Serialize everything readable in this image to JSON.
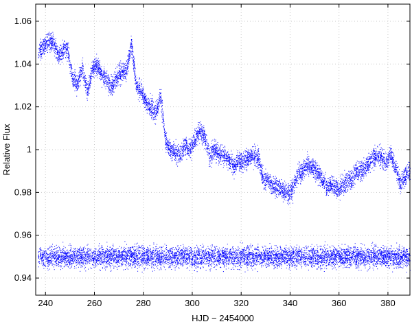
{
  "chart_data": {
    "type": "scatter",
    "title": "",
    "xlabel": "HJD − 2454000",
    "ylabel": "Relative Flux",
    "xlim": [
      236,
      389
    ],
    "ylim": [
      0.932,
      1.068
    ],
    "xticks": [
      240,
      260,
      280,
      300,
      320,
      340,
      360,
      380
    ],
    "xtick_labels": [
      "240",
      "260",
      "280",
      "300",
      "320",
      "340",
      "360",
      "380"
    ],
    "yticks": [
      0.94,
      0.96,
      0.98,
      1.0,
      1.02,
      1.04,
      1.06
    ],
    "ytick_labels": [
      "0.94",
      "0.96",
      "0.98",
      "1",
      "1.02",
      "1.04",
      "1.06"
    ],
    "grid": true,
    "legend": "none",
    "marker_color": "#0000ff",
    "series": [
      {
        "x": [
          237,
          239,
          241,
          243,
          245,
          247,
          249,
          251,
          253,
          255,
          257,
          259,
          261,
          263,
          265,
          267,
          269,
          271,
          273,
          275,
          277,
          279,
          281,
          283,
          285,
          287,
          289,
          291,
          293,
          295,
          297,
          299,
          301,
          303,
          305,
          307,
          309,
          311,
          313,
          315,
          317,
          319,
          321,
          323,
          325,
          327,
          329,
          331,
          333,
          335,
          337,
          339,
          341,
          343,
          345,
          347,
          349,
          351,
          353,
          355,
          357,
          359,
          361,
          363,
          365,
          367,
          369,
          371,
          373,
          375,
          377,
          379,
          381,
          383,
          385,
          387,
          389
        ],
        "y": [
          1.046,
          1.048,
          1.051,
          1.05,
          1.044,
          1.046,
          1.047,
          1.033,
          1.031,
          1.038,
          1.027,
          1.038,
          1.039,
          1.035,
          1.033,
          1.029,
          1.034,
          1.036,
          1.037,
          1.05,
          1.03,
          1.028,
          1.022,
          1.02,
          1.017,
          1.025,
          1.004,
          1.0,
          0.999,
          0.998,
          1.002,
          1.0,
          1.005,
          1.009,
          1.006,
          0.997,
          1.0,
          0.998,
          0.997,
          0.995,
          0.992,
          0.995,
          0.994,
          0.997,
          0.997,
          0.996,
          0.986,
          0.986,
          0.983,
          0.983,
          0.981,
          0.979,
          0.982,
          0.989,
          0.99,
          0.993,
          0.992,
          0.99,
          0.986,
          0.983,
          0.983,
          0.982,
          0.983,
          0.985,
          0.986,
          0.99,
          0.99,
          0.992,
          0.996,
          0.997,
          0.997,
          0.994,
          0.998,
          0.992,
          0.984,
          0.988,
          0.99
        ]
      },
      {
        "x": [
          237,
          250,
          260,
          270,
          280,
          290,
          300,
          310,
          320,
          330,
          340,
          350,
          360,
          370,
          380,
          389
        ],
        "y": [
          0.95,
          0.95,
          0.95,
          0.95,
          0.95,
          0.95,
          0.95,
          0.95,
          0.95,
          0.95,
          0.95,
          0.95,
          0.95,
          0.95,
          0.95,
          0.95
        ]
      }
    ]
  }
}
